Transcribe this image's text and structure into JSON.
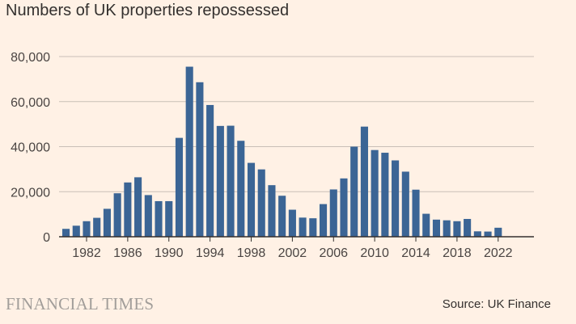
{
  "chart_data": {
    "type": "bar",
    "title": "Numbers of UK properties repossessed",
    "xlabel": "",
    "ylabel": "",
    "ylim": [
      0,
      80000
    ],
    "yticks": [
      0,
      20000,
      40000,
      60000,
      80000
    ],
    "ytick_labels": [
      "0",
      "20,000",
      "40,000",
      "60,000",
      "80,000"
    ],
    "xtick_labels": [
      "1982",
      "1986",
      "1990",
      "1994",
      "1998",
      "2002",
      "2006",
      "2010",
      "2014",
      "2018",
      "2022"
    ],
    "categories": [
      1980,
      1981,
      1982,
      1983,
      1984,
      1985,
      1986,
      1987,
      1988,
      1989,
      1990,
      1991,
      1992,
      1993,
      1994,
      1995,
      1996,
      1997,
      1998,
      1999,
      2000,
      2001,
      2002,
      2003,
      2004,
      2005,
      2006,
      2007,
      2008,
      2009,
      2010,
      2011,
      2012,
      2013,
      2014,
      2015,
      2016,
      2017,
      2018,
      2019,
      2020,
      2021,
      2022,
      2023
    ],
    "values": [
      3500,
      4900,
      6900,
      8400,
      12400,
      19300,
      24100,
      26400,
      18500,
      15800,
      15800,
      43900,
      75500,
      68600,
      58500,
      49200,
      49300,
      42600,
      32800,
      29900,
      22900,
      18200,
      12000,
      8500,
      8200,
      14500,
      21000,
      25900,
      40000,
      48900,
      38500,
      37300,
      33900,
      28900,
      20900,
      10200,
      7600,
      7300,
      6900,
      7900,
      2400,
      2300,
      4000,
      null
    ],
    "grid": true,
    "bar_color": "#3b6595"
  },
  "colors": {
    "background": "#fff1e5",
    "bar": "#3b6595",
    "grid": "#c9bfb6",
    "baseline": "#33302e"
  },
  "footer": {
    "brand": "FINANCIAL TIMES",
    "source": "Source: UK Finance"
  }
}
